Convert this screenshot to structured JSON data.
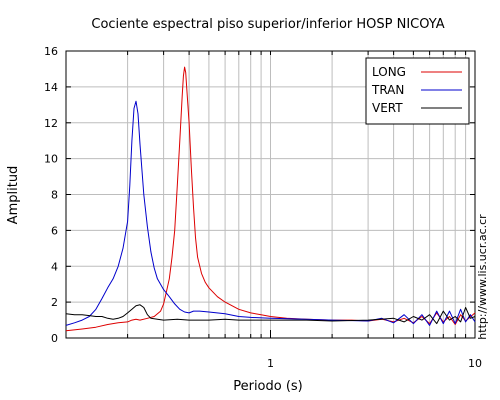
{
  "chart_data": {
    "type": "line",
    "title": "Cociente espectral piso superior/inferior  HOSP NICOYA",
    "xlabel": "Periodo (s)",
    "ylabel": "Amplitud",
    "side_note": "http://www.lis.ucr.ac.cr",
    "x_scale": "log",
    "xlim": [
      0.1,
      10
    ],
    "ylim": [
      0,
      16
    ],
    "x_tick_labels": [
      {
        "value": 1,
        "label": "1"
      },
      {
        "value": 10,
        "label": "10"
      }
    ],
    "y_ticks": [
      0,
      2,
      4,
      6,
      8,
      10,
      12,
      14,
      16
    ],
    "grid": true,
    "legend_position": "top-right",
    "series": [
      {
        "name": "LONG",
        "color": "#dd0000",
        "points": [
          [
            0.1,
            0.4
          ],
          [
            0.12,
            0.5
          ],
          [
            0.14,
            0.6
          ],
          [
            0.16,
            0.75
          ],
          [
            0.18,
            0.85
          ],
          [
            0.2,
            0.9
          ],
          [
            0.21,
            1.0
          ],
          [
            0.22,
            1.05
          ],
          [
            0.23,
            1.0
          ],
          [
            0.25,
            1.1
          ],
          [
            0.27,
            1.2
          ],
          [
            0.29,
            1.5
          ],
          [
            0.3,
            1.9
          ],
          [
            0.31,
            2.6
          ],
          [
            0.32,
            3.3
          ],
          [
            0.33,
            4.5
          ],
          [
            0.34,
            6.0
          ],
          [
            0.35,
            8.5
          ],
          [
            0.36,
            11.0
          ],
          [
            0.37,
            13.5
          ],
          [
            0.375,
            14.6
          ],
          [
            0.38,
            15.1
          ],
          [
            0.385,
            14.8
          ],
          [
            0.39,
            13.8
          ],
          [
            0.4,
            12.0
          ],
          [
            0.41,
            9.5
          ],
          [
            0.42,
            7.3
          ],
          [
            0.43,
            5.6
          ],
          [
            0.44,
            4.5
          ],
          [
            0.46,
            3.6
          ],
          [
            0.48,
            3.1
          ],
          [
            0.5,
            2.8
          ],
          [
            0.55,
            2.3
          ],
          [
            0.6,
            2.0
          ],
          [
            0.7,
            1.6
          ],
          [
            0.8,
            1.4
          ],
          [
            0.9,
            1.3
          ],
          [
            1.0,
            1.2
          ],
          [
            1.2,
            1.1
          ],
          [
            1.5,
            1.05
          ],
          [
            2.0,
            1.0
          ],
          [
            2.5,
            1.0
          ],
          [
            3.0,
            0.95
          ],
          [
            3.5,
            1.05
          ],
          [
            4.0,
            0.9
          ],
          [
            4.5,
            1.1
          ],
          [
            5.0,
            0.85
          ],
          [
            5.5,
            1.2
          ],
          [
            6.0,
            0.8
          ],
          [
            6.5,
            1.4
          ],
          [
            7.0,
            0.9
          ],
          [
            7.5,
            1.2
          ],
          [
            8.0,
            0.75
          ],
          [
            8.5,
            1.3
          ],
          [
            9.0,
            0.95
          ],
          [
            10.0,
            1.4
          ]
        ]
      },
      {
        "name": "TRAN",
        "color": "#0000cc",
        "points": [
          [
            0.1,
            0.7
          ],
          [
            0.11,
            0.85
          ],
          [
            0.12,
            1.0
          ],
          [
            0.13,
            1.2
          ],
          [
            0.14,
            1.6
          ],
          [
            0.15,
            2.2
          ],
          [
            0.16,
            2.8
          ],
          [
            0.17,
            3.3
          ],
          [
            0.18,
            4.0
          ],
          [
            0.19,
            5.0
          ],
          [
            0.2,
            6.5
          ],
          [
            0.205,
            8.5
          ],
          [
            0.21,
            11.0
          ],
          [
            0.215,
            12.8
          ],
          [
            0.22,
            13.2
          ],
          [
            0.225,
            12.5
          ],
          [
            0.23,
            10.8
          ],
          [
            0.24,
            8.0
          ],
          [
            0.25,
            6.2
          ],
          [
            0.26,
            4.8
          ],
          [
            0.27,
            3.9
          ],
          [
            0.28,
            3.3
          ],
          [
            0.3,
            2.7
          ],
          [
            0.32,
            2.3
          ],
          [
            0.34,
            1.9
          ],
          [
            0.36,
            1.6
          ],
          [
            0.38,
            1.45
          ],
          [
            0.4,
            1.4
          ],
          [
            0.42,
            1.5
          ],
          [
            0.45,
            1.5
          ],
          [
            0.5,
            1.45
          ],
          [
            0.6,
            1.35
          ],
          [
            0.7,
            1.2
          ],
          [
            0.8,
            1.15
          ],
          [
            1.0,
            1.1
          ],
          [
            1.5,
            1.05
          ],
          [
            2.0,
            1.0
          ],
          [
            3.0,
            0.95
          ],
          [
            3.5,
            1.1
          ],
          [
            4.0,
            0.85
          ],
          [
            4.5,
            1.3
          ],
          [
            5.0,
            0.8
          ],
          [
            5.5,
            1.3
          ],
          [
            6.0,
            0.7
          ],
          [
            6.5,
            1.5
          ],
          [
            7.0,
            0.8
          ],
          [
            7.5,
            1.5
          ],
          [
            8.0,
            0.8
          ],
          [
            8.5,
            1.6
          ],
          [
            9.0,
            0.9
          ],
          [
            9.5,
            1.3
          ],
          [
            10.0,
            0.9
          ]
        ]
      },
      {
        "name": "VERT",
        "color": "#000000",
        "points": [
          [
            0.1,
            1.35
          ],
          [
            0.11,
            1.3
          ],
          [
            0.12,
            1.3
          ],
          [
            0.13,
            1.25
          ],
          [
            0.14,
            1.2
          ],
          [
            0.15,
            1.2
          ],
          [
            0.16,
            1.1
          ],
          [
            0.17,
            1.05
          ],
          [
            0.18,
            1.1
          ],
          [
            0.19,
            1.2
          ],
          [
            0.2,
            1.4
          ],
          [
            0.21,
            1.6
          ],
          [
            0.22,
            1.8
          ],
          [
            0.23,
            1.85
          ],
          [
            0.24,
            1.7
          ],
          [
            0.25,
            1.3
          ],
          [
            0.26,
            1.1
          ],
          [
            0.28,
            1.05
          ],
          [
            0.3,
            1.0
          ],
          [
            0.35,
            1.05
          ],
          [
            0.4,
            1.0
          ],
          [
            0.5,
            1.0
          ],
          [
            0.6,
            1.05
          ],
          [
            0.7,
            1.0
          ],
          [
            0.8,
            1.0
          ],
          [
            1.0,
            1.0
          ],
          [
            1.5,
            1.0
          ],
          [
            2.0,
            0.95
          ],
          [
            3.0,
            1.0
          ],
          [
            4.0,
            1.1
          ],
          [
            4.5,
            0.9
          ],
          [
            5.0,
            1.2
          ],
          [
            5.5,
            1.0
          ],
          [
            6.0,
            1.3
          ],
          [
            6.5,
            0.8
          ],
          [
            7.0,
            1.5
          ],
          [
            7.5,
            1.0
          ],
          [
            8.0,
            1.2
          ],
          [
            8.5,
            0.9
          ],
          [
            9.0,
            1.7
          ],
          [
            9.5,
            1.1
          ],
          [
            10.0,
            1.2
          ]
        ]
      }
    ]
  }
}
